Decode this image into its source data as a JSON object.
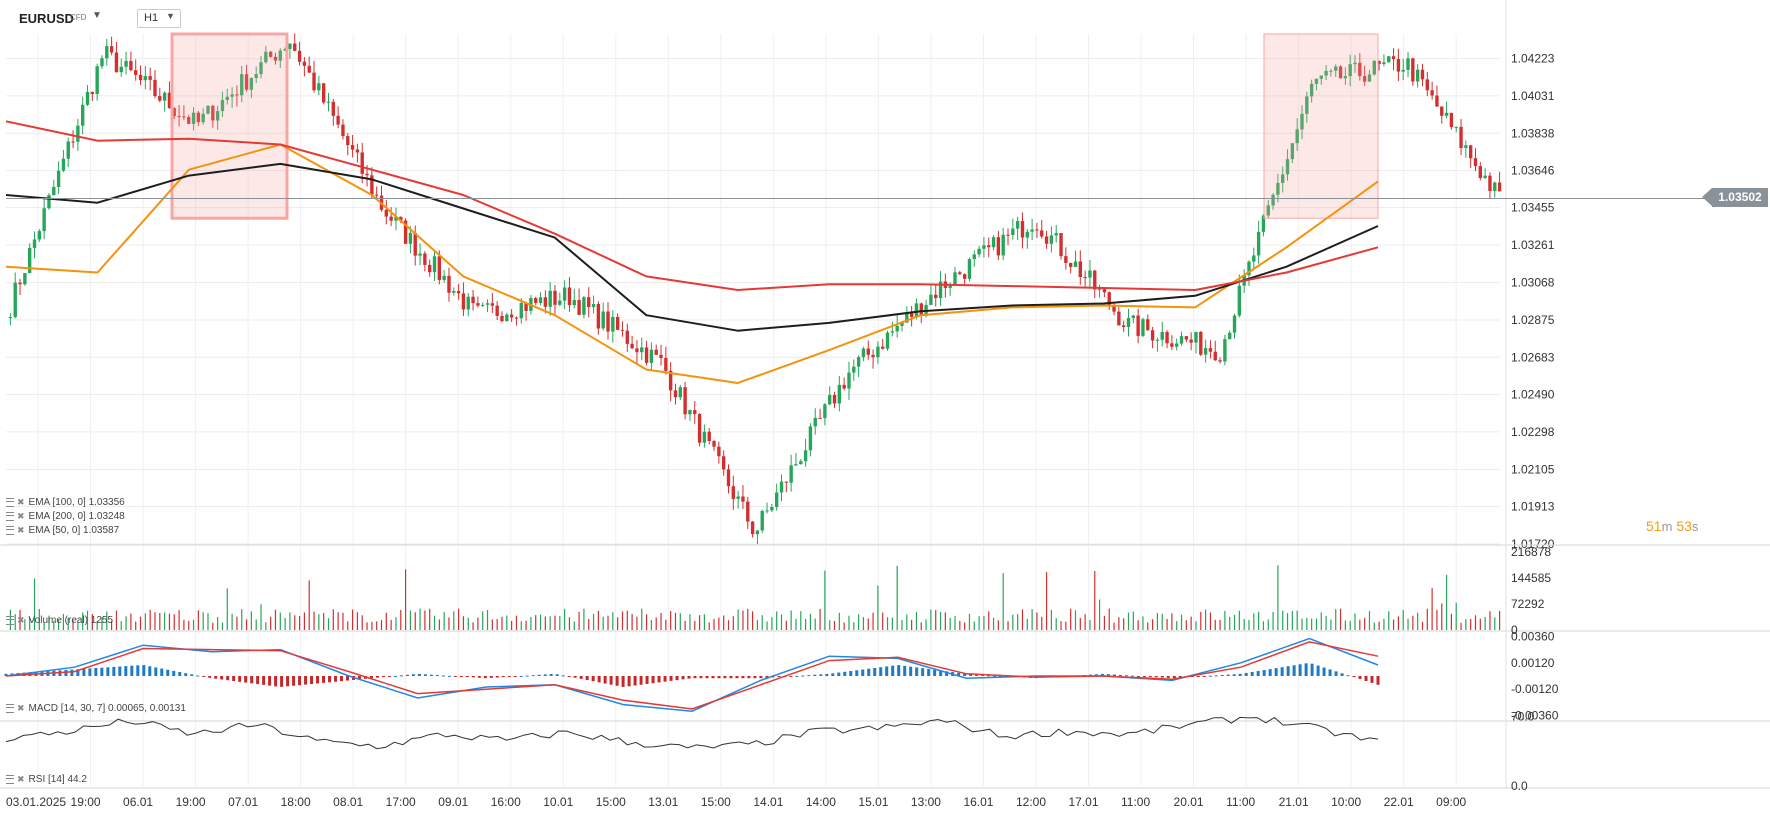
{
  "header": {
    "symbol": "EURUSD",
    "symbol_type": "CFD",
    "timeframe": "H1"
  },
  "indicators": {
    "ema100": "EMA [100,  0]  1.03356",
    "ema200": "EMA [200,  0]  1.03248",
    "ema50": "EMA [50,  0]  1.03587",
    "volume": "Volume  (real)  1255",
    "macd": "MACD [14, 30, 7]  0.00065,  0.00131",
    "rsi": "RSI [14]  44.2"
  },
  "timer": {
    "min": "51",
    "min_unit": "m",
    "sec": "53",
    "sec_unit": "s"
  },
  "last_price": "1.03502",
  "colors": {
    "bull": "#26a65b",
    "bear": "#d32f2f",
    "ema50": "#f5920c",
    "ema100": "#1e1e1e",
    "ema200": "#e53935",
    "macd_line": "#1e88e5",
    "signal_line": "#e53935",
    "highlight": "#f8a5a5"
  },
  "chart_data": [
    {
      "type": "candlestick",
      "title": "EURUSD H1",
      "y_ticks": [
        "1.04223",
        "1.04031",
        "1.03838",
        "1.03646",
        "1.03455",
        "1.03261",
        "1.03068",
        "1.02875",
        "1.02683",
        "1.02490",
        "1.02298",
        "1.02105",
        "1.01913",
        "1.01720"
      ],
      "x_ticks": [
        "03.01.2025",
        "19:00",
        "06.01",
        "19:00",
        "07.01",
        "18:00",
        "08.01",
        "17:00",
        "09.01",
        "16:00",
        "10.01",
        "15:00",
        "13.01",
        "15:00",
        "14.01",
        "14:00",
        "15.01",
        "13:00",
        "16.01",
        "12:00",
        "17.01",
        "11:00",
        "20.01",
        "11:00",
        "21.01",
        "10:00",
        "22.01",
        "09:00"
      ],
      "ylim": [
        1.0172,
        1.0435
      ],
      "key_closes": [
        {
          "x": "03.01 18:00",
          "y": 1.0295
        },
        {
          "x": "06.01 01:00",
          "y": 1.0425
        },
        {
          "x": "06.01 23:00",
          "y": 1.0388
        },
        {
          "x": "07.01 05:00",
          "y": 1.0432
        },
        {
          "x": "07.01 15:00",
          "y": 1.0345
        },
        {
          "x": "08.01 00:00",
          "y": 1.029
        },
        {
          "x": "09.01 12:00",
          "y": 1.03
        },
        {
          "x": "10.01 15:00",
          "y": 1.0265
        },
        {
          "x": "13.01 04:00",
          "y": 1.0178
        },
        {
          "x": "13.01 23:00",
          "y": 1.026
        },
        {
          "x": "14.01 20:00",
          "y": 1.0305
        },
        {
          "x": "15.01 13:00",
          "y": 1.034
        },
        {
          "x": "16.01 06:00",
          "y": 1.0285
        },
        {
          "x": "17.01 20:00",
          "y": 1.0272
        },
        {
          "x": "20.01 08:00",
          "y": 1.041
        },
        {
          "x": "20.01 22:00",
          "y": 1.042
        },
        {
          "x": "21.01 09:00",
          "y": 1.035
        }
      ],
      "ema_series": [
        {
          "name": "EMA 50",
          "values": [
            1.0315,
            1.0312,
            1.0365,
            1.0378,
            1.0352,
            1.031,
            1.029,
            1.0262,
            1.0255,
            1.0272,
            1.029,
            1.0294,
            1.0295,
            1.0294,
            1.0325,
            1.0359
          ]
        },
        {
          "name": "EMA 100",
          "values": [
            1.0352,
            1.0348,
            1.0362,
            1.0368,
            1.036,
            1.0345,
            1.033,
            1.029,
            1.0282,
            1.0286,
            1.0292,
            1.0295,
            1.0296,
            1.03,
            1.0315,
            1.0336
          ]
        },
        {
          "name": "EMA 200",
          "values": [
            1.039,
            1.038,
            1.0381,
            1.0378,
            1.0365,
            1.0352,
            1.0332,
            1.031,
            1.0303,
            1.0306,
            1.0306,
            1.0305,
            1.0304,
            1.0303,
            1.0312,
            1.0325
          ]
        }
      ],
      "highlight_zones": [
        {
          "from": "06.01 23:00",
          "to": "07.01 15:00",
          "ylow": 1.034,
          "yhigh": 1.0435
        },
        {
          "from": "20.01 08:00",
          "to": "21.01 09:00",
          "ylow": 1.034,
          "yhigh": 1.0435
        }
      ],
      "last_price": 1.03502
    },
    {
      "type": "bar",
      "title": "Volume",
      "y_ticks": [
        "216878",
        "144585",
        "72292",
        "0"
      ],
      "ylim": [
        0,
        216878
      ]
    },
    {
      "type": "line",
      "title": "MACD [14, 30, 7]",
      "y_ticks": [
        "0.00360",
        "0.00120",
        "-0.00120",
        "-0.00360"
      ],
      "ylim": [
        -0.004,
        0.004
      ],
      "series": [
        {
          "name": "MACD",
          "values": [
            0.0,
            0.0008,
            0.0028,
            0.0022,
            0.0024,
            0.0,
            -0.002,
            -0.001,
            -0.0008,
            -0.0026,
            -0.0032,
            -0.0004,
            0.0018,
            0.0016,
            -0.0002,
            0.0,
            0.0,
            -0.0004,
            0.0012,
            0.0034,
            0.001
          ]
        },
        {
          "name": "Signal",
          "values": [
            0.0,
            0.0004,
            0.0025,
            0.0024,
            0.0023,
            0.0004,
            -0.0016,
            -0.0012,
            -0.0008,
            -0.0022,
            -0.003,
            -0.0008,
            0.0014,
            0.0017,
            0.0002,
            -0.0001,
            0.0,
            -0.0003,
            0.0008,
            0.0031,
            0.0018
          ]
        }
      ],
      "histogram": [
        0.0002,
        0.0006,
        0.001,
        -0.0002,
        -0.001,
        -0.0004,
        0.0002,
        -0.0002,
        0.0002,
        -0.001,
        -0.0002,
        -0.0002,
        0.0002,
        0.001,
        0.0002,
        -0.0002,
        0.0002,
        -0.0002,
        0.0002,
        0.0012,
        -0.0008
      ]
    },
    {
      "type": "line",
      "title": "RSI [14]",
      "y_ticks": [
        "70.0",
        "0.0"
      ],
      "ylim": [
        0,
        100
      ],
      "series": [
        {
          "name": "RSI",
          "values": [
            48,
            55,
            66,
            52,
            62,
            45,
            40,
            52,
            46,
            54,
            44,
            38,
            42,
            55,
            58,
            66,
            50,
            55,
            52,
            62,
            70,
            58,
            44
          ]
        }
      ]
    }
  ]
}
